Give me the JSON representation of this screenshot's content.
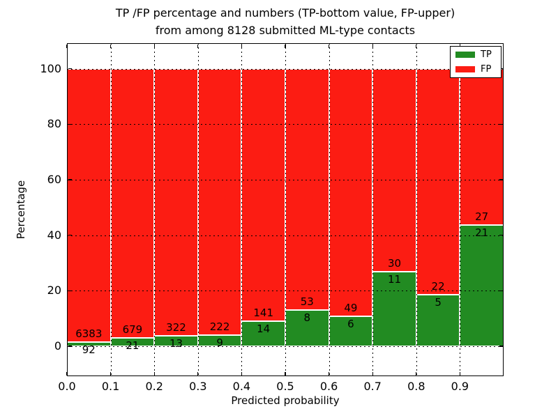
{
  "title": {
    "line1": "TP /FP percentage and numbers (TP-bottom value, FP-upper)",
    "line2": "from among 8128 submitted ML-type contacts"
  },
  "chart_data": {
    "type": "bar",
    "stacked": true,
    "title": "TP /FP percentage and numbers (TP-bottom value, FP-upper) from among 8128 submitted ML-type contacts",
    "xlabel": "Predicted probability",
    "ylabel": "Percentage",
    "total_contacts": 8128,
    "bins": [
      [
        0.0,
        0.1
      ],
      [
        0.1,
        0.2
      ],
      [
        0.2,
        0.3
      ],
      [
        0.3,
        0.4
      ],
      [
        0.4,
        0.5
      ],
      [
        0.5,
        0.6
      ],
      [
        0.6,
        0.7
      ],
      [
        0.7,
        0.8
      ],
      [
        0.8,
        0.9
      ],
      [
        0.9,
        1.0
      ]
    ],
    "series": [
      {
        "name": "TP",
        "color": "#228b22",
        "counts": [
          92,
          21,
          13,
          9,
          14,
          8,
          6,
          11,
          5,
          21
        ],
        "percent": [
          1.42,
          3.0,
          3.88,
          3.9,
          9.03,
          13.11,
          10.91,
          26.83,
          18.52,
          43.75
        ]
      },
      {
        "name": "FP",
        "color": "#fc1c13",
        "counts": [
          6383,
          679,
          322,
          222,
          141,
          53,
          49,
          30,
          22,
          27
        ],
        "percent": [
          98.58,
          97.0,
          96.12,
          96.1,
          90.97,
          86.89,
          89.09,
          73.17,
          81.48,
          56.25
        ]
      }
    ],
    "x_ticks": [
      "0.0",
      "0.1",
      "0.2",
      "0.3",
      "0.4",
      "0.5",
      "0.6",
      "0.7",
      "0.8",
      "0.9"
    ],
    "y_ticks": [
      0,
      20,
      40,
      60,
      80,
      100
    ],
    "xlim": [
      0.0,
      1.0
    ],
    "ylim": [
      -10.8,
      109.2
    ],
    "grid": "dotted black, both axes, drawn over bars",
    "legend": {
      "position": "upper right",
      "entries": [
        {
          "label": "TP",
          "color": "#228b22"
        },
        {
          "label": "FP",
          "color": "#fc1c13"
        }
      ]
    },
    "annotation_note": "FP count printed above each green/red boundary, TP count below it"
  }
}
